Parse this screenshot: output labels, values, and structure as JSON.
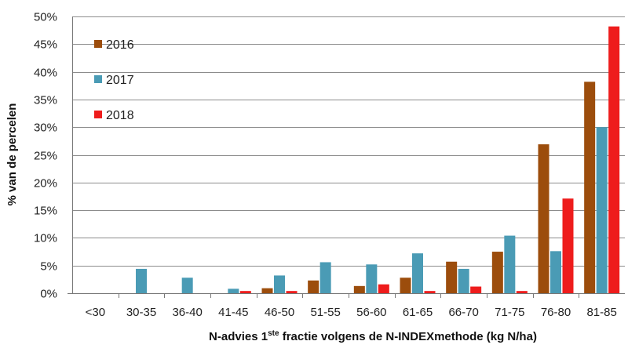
{
  "chart_data": {
    "type": "bar",
    "title": "",
    "xlabel_parts": [
      "N-advies 1",
      "ste",
      " fractie volgens de N-INDEXmethode (kg N/ha)"
    ],
    "ylabel": "% van de percelen",
    "ylim": [
      0,
      50
    ],
    "y_tick_step": 5,
    "y_tick_format": "percent",
    "grid": true,
    "legend_position": "top-left",
    "categories": [
      "<30",
      "30-35",
      "36-40",
      "41-45",
      "46-50",
      "51-55",
      "56-60",
      "61-65",
      "66-70",
      "71-75",
      "76-80",
      "81-85"
    ],
    "series": [
      {
        "name": "2016",
        "color": "#9c4d0c",
        "values": [
          0,
          0,
          0,
          0,
          0.9,
          2.3,
          1.3,
          2.8,
          5.7,
          7.5,
          26.9,
          38.2
        ]
      },
      {
        "name": "2017",
        "color": "#4a9bb5",
        "values": [
          0,
          4.4,
          2.8,
          0.8,
          3.2,
          5.6,
          5.2,
          7.2,
          4.4,
          10.4,
          7.6,
          30.0
        ]
      },
      {
        "name": "2018",
        "color": "#ee1c1c",
        "values": [
          0,
          0,
          0,
          0.4,
          0.4,
          0,
          1.6,
          0.4,
          1.2,
          0.4,
          17.1,
          48.2
        ]
      }
    ]
  }
}
